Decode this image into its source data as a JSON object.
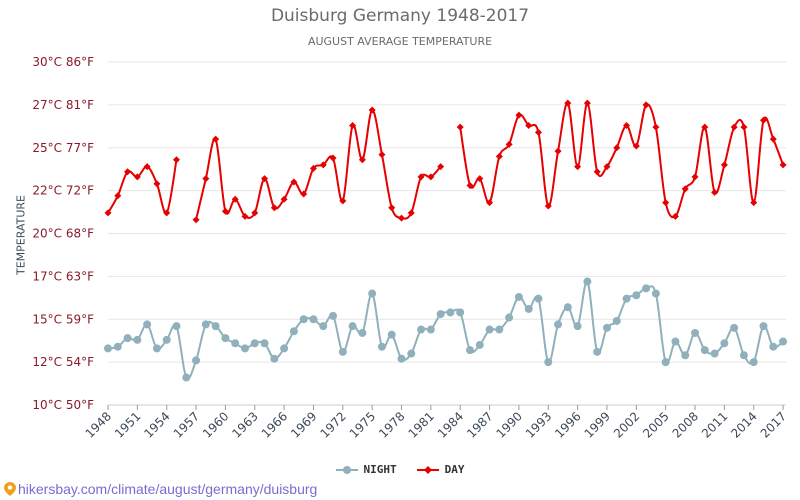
{
  "title": "Duisburg Germany 1948-2017",
  "subtitle": "AUGUST AVERAGE TEMPERATURE",
  "footer_text": "hikersbay.com/climate/august/germany/duisburg",
  "icons": {
    "footer": "location-pin-icon"
  },
  "colors": {
    "day": "#e60000",
    "night": "#90b0bc",
    "grid": "#e6e6e6",
    "ytick": "#8b1a2b",
    "xtick": "#3d4a5a",
    "footer": "#7a6bd0"
  },
  "chart_data": {
    "type": "line",
    "title": "Duisburg Germany 1948-2017",
    "subtitle": "AUGUST AVERAGE TEMPERATURE",
    "ylabel": "TEMPERATURE",
    "xlabel": "",
    "ylim": [
      10,
      30
    ],
    "yticks": [
      {
        "value": 10,
        "label": "10°C 50°F"
      },
      {
        "value": 12.5,
        "label": "12°C 54°F"
      },
      {
        "value": 15,
        "label": "15°C 59°F"
      },
      {
        "value": 17.5,
        "label": "17°C 63°F"
      },
      {
        "value": 20,
        "label": "20°C 68°F"
      },
      {
        "value": 22.5,
        "label": "22°C 72°F"
      },
      {
        "value": 25,
        "label": "25°C 77°F"
      },
      {
        "value": 27.5,
        "label": "27°C 81°F"
      },
      {
        "value": 30,
        "label": "30°C 86°F"
      }
    ],
    "xticks": [
      "1948",
      "1951",
      "1954",
      "1957",
      "1960",
      "1963",
      "1966",
      "1969",
      "1972",
      "1975",
      "1978",
      "1981",
      "1984",
      "1987",
      "1990",
      "1993",
      "1996",
      "1999",
      "2002",
      "2005",
      "2008",
      "2011",
      "2014",
      "2017"
    ],
    "grid": true,
    "legend_position": "bottom",
    "x": [
      1948,
      1949,
      1950,
      1951,
      1952,
      1953,
      1954,
      1955,
      1956,
      1957,
      1958,
      1959,
      1960,
      1961,
      1962,
      1963,
      1964,
      1965,
      1966,
      1967,
      1968,
      1969,
      1970,
      1971,
      1972,
      1973,
      1974,
      1975,
      1976,
      1977,
      1978,
      1979,
      1980,
      1981,
      1982,
      1983,
      1984,
      1985,
      1986,
      1987,
      1988,
      1989,
      1990,
      1991,
      1992,
      1993,
      1994,
      1995,
      1996,
      1997,
      1998,
      1999,
      2000,
      2001,
      2002,
      2003,
      2004,
      2005,
      2006,
      2007,
      2008,
      2009,
      2010,
      2011,
      2012,
      2013,
      2014,
      2015,
      2016,
      2017
    ],
    "series": [
      {
        "name": "NIGHT",
        "values": [
          13.3,
          13.4,
          13.9,
          13.8,
          14.7,
          13.3,
          13.8,
          14.6,
          11.6,
          12.6,
          14.7,
          14.6,
          13.9,
          13.6,
          13.3,
          13.6,
          13.6,
          12.7,
          13.3,
          14.3,
          15.0,
          15.0,
          14.6,
          15.2,
          13.1,
          14.6,
          14.2,
          16.5,
          13.4,
          14.1,
          12.7,
          13.0,
          14.4,
          14.4,
          15.3,
          15.4,
          15.4,
          13.2,
          13.5,
          14.4,
          14.4,
          15.1,
          16.3,
          15.6,
          16.2,
          12.5,
          14.7,
          15.7,
          14.6,
          17.2,
          13.1,
          14.5,
          14.9,
          16.2,
          16.4,
          16.8,
          16.5,
          12.5,
          13.7,
          12.9,
          14.2,
          13.2,
          13.0,
          13.6,
          14.5,
          12.9,
          12.5,
          14.6,
          13.4,
          13.7
        ]
      },
      {
        "name": "DAY",
        "values": [
          21.2,
          22.2,
          23.6,
          23.3,
          23.9,
          22.9,
          21.2,
          24.3,
          null,
          20.8,
          23.2,
          25.5,
          21.3,
          22.0,
          21.0,
          21.2,
          23.2,
          21.5,
          22.0,
          23.0,
          22.3,
          23.8,
          24.0,
          24.4,
          21.9,
          26.3,
          24.3,
          27.2,
          24.6,
          21.5,
          20.9,
          21.2,
          23.3,
          23.3,
          23.9,
          null,
          26.2,
          22.8,
          23.2,
          21.8,
          24.5,
          25.2,
          26.9,
          26.3,
          25.9,
          21.6,
          24.8,
          27.6,
          23.9,
          27.6,
          23.6,
          23.9,
          25.0,
          26.3,
          25.1,
          27.5,
          26.2,
          21.8,
          21.0,
          22.6,
          23.3,
          26.2,
          22.4,
          24.0,
          26.2,
          26.2,
          21.8,
          26.6,
          25.5,
          24.0
        ]
      }
    ]
  }
}
